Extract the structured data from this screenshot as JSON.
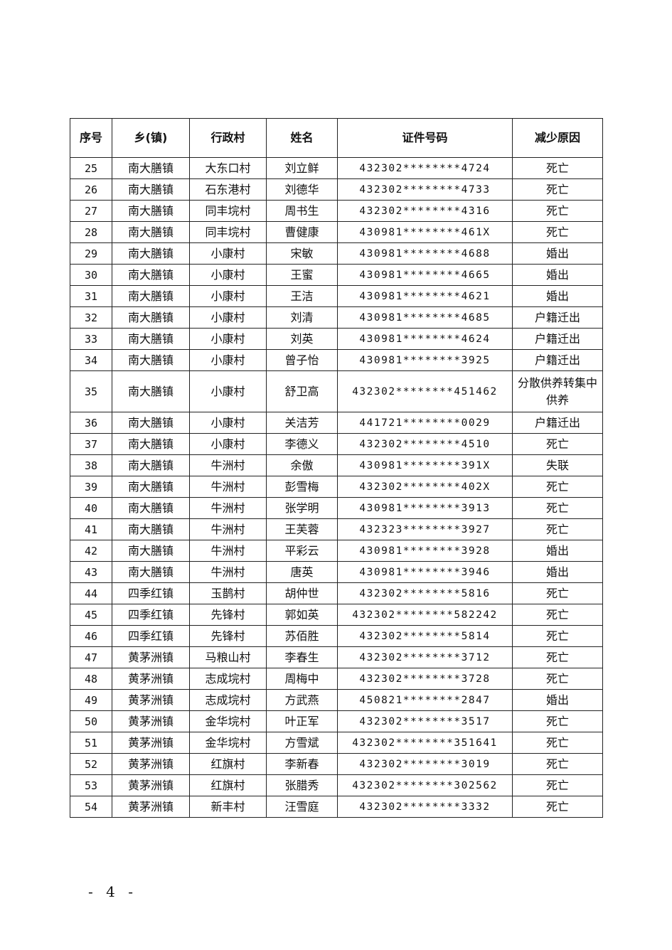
{
  "table": {
    "headers": [
      "序号",
      "乡(镇)",
      "行政村",
      "姓名",
      "证件号码",
      "减少原因"
    ],
    "rows": [
      [
        "25",
        "南大膳镇",
        "大东口村",
        "刘立鲜",
        "432302********4724",
        "死亡"
      ],
      [
        "26",
        "南大膳镇",
        "石东港村",
        "刘德华",
        "432302********4733",
        "死亡"
      ],
      [
        "27",
        "南大膳镇",
        "同丰垸村",
        "周书生",
        "432302********4316",
        "死亡"
      ],
      [
        "28",
        "南大膳镇",
        "同丰垸村",
        "曹健康",
        "430981********461X",
        "死亡"
      ],
      [
        "29",
        "南大膳镇",
        "小康村",
        "宋敏",
        "430981********4688",
        "婚出"
      ],
      [
        "30",
        "南大膳镇",
        "小康村",
        "王蜜",
        "430981********4665",
        "婚出"
      ],
      [
        "31",
        "南大膳镇",
        "小康村",
        "王洁",
        "430981********4621",
        "婚出"
      ],
      [
        "32",
        "南大膳镇",
        "小康村",
        "刘清",
        "430981********4685",
        "户籍迁出"
      ],
      [
        "33",
        "南大膳镇",
        "小康村",
        "刘英",
        "430981********4624",
        "户籍迁出"
      ],
      [
        "34",
        "南大膳镇",
        "小康村",
        "曾子怡",
        "430981********3925",
        "户籍迁出"
      ],
      [
        "35",
        "南大膳镇",
        "小康村",
        "舒卫高",
        "432302********451462",
        "分散供养转集中供养"
      ],
      [
        "36",
        "南大膳镇",
        "小康村",
        "关洁芳",
        "441721********0029",
        "户籍迁出"
      ],
      [
        "37",
        "南大膳镇",
        "小康村",
        "李德义",
        "432302********4510",
        "死亡"
      ],
      [
        "38",
        "南大膳镇",
        "牛洲村",
        "余傲",
        "430981********391X",
        "失联"
      ],
      [
        "39",
        "南大膳镇",
        "牛洲村",
        "彭雪梅",
        "432302********402X",
        "死亡"
      ],
      [
        "40",
        "南大膳镇",
        "牛洲村",
        "张学明",
        "430981********3913",
        "死亡"
      ],
      [
        "41",
        "南大膳镇",
        "牛洲村",
        "王芙蓉",
        "432323********3927",
        "死亡"
      ],
      [
        "42",
        "南大膳镇",
        "牛洲村",
        "平彩云",
        "430981********3928",
        "婚出"
      ],
      [
        "43",
        "南大膳镇",
        "牛洲村",
        "唐英",
        "430981********3946",
        "婚出"
      ],
      [
        "44",
        "四季红镇",
        "玉鹊村",
        "胡仲世",
        "432302********5816",
        "死亡"
      ],
      [
        "45",
        "四季红镇",
        "先锋村",
        "郭如英",
        "432302********582242",
        "死亡"
      ],
      [
        "46",
        "四季红镇",
        "先锋村",
        "苏佰胜",
        "432302********5814",
        "死亡"
      ],
      [
        "47",
        "黄茅洲镇",
        "马粮山村",
        "李春生",
        "432302********3712",
        "死亡"
      ],
      [
        "48",
        "黄茅洲镇",
        "志成垸村",
        "周梅中",
        "432302********3728",
        "死亡"
      ],
      [
        "49",
        "黄茅洲镇",
        "志成垸村",
        "方武燕",
        "450821********2847",
        "婚出"
      ],
      [
        "50",
        "黄茅洲镇",
        "金华垸村",
        "叶正军",
        "432302********3517",
        "死亡"
      ],
      [
        "51",
        "黄茅洲镇",
        "金华垸村",
        "方雪斌",
        "432302********351641",
        "死亡"
      ],
      [
        "52",
        "黄茅洲镇",
        "红旗村",
        "李新春",
        "432302********3019",
        "死亡"
      ],
      [
        "53",
        "黄茅洲镇",
        "红旗村",
        "张腊秀",
        "432302********302562",
        "死亡"
      ],
      [
        "54",
        "黄茅洲镇",
        "新丰村",
        "汪雪庭",
        "432302********3332",
        "死亡"
      ]
    ]
  },
  "page_number": "- 4 -"
}
